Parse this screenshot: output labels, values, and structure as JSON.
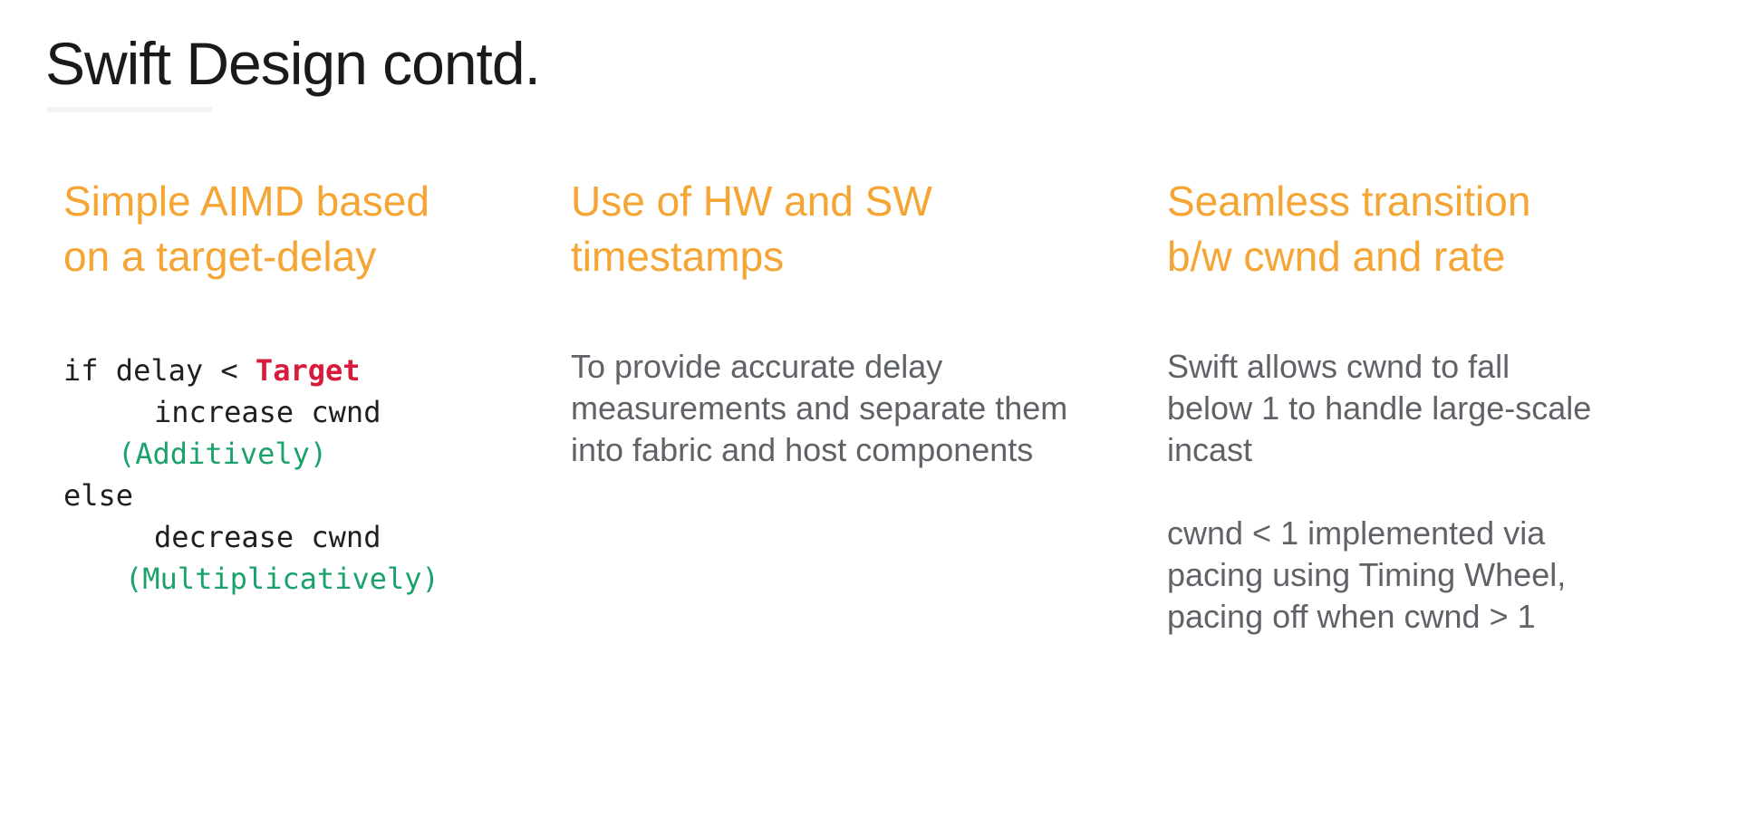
{
  "slide": {
    "title": "Swift Design contd."
  },
  "columns": [
    {
      "heading": "Simple AIMD based\non a target-delay",
      "code": {
        "line1_prefix": "if delay < ",
        "line1_target": "Target",
        "line2": "increase cwnd",
        "line3": "(Additively)",
        "line4": "else",
        "line5": "decrease cwnd",
        "line6": "(Multiplicatively)"
      }
    },
    {
      "heading": "Use of HW and SW\ntimestamps",
      "body": "To provide accurate delay\nmeasurements and separate them\ninto fabric and host components"
    },
    {
      "heading": "Seamless transition\nb/w cwnd and rate",
      "body1": "Swift allows cwnd to fall\nbelow 1 to handle large-scale\nincast",
      "body2": "cwnd < 1 implemented via\npacing using Timing Wheel,\npacing off when cwnd > 1"
    }
  ],
  "colors": {
    "heading": "#f5a533",
    "body": "#5f6368",
    "code_target": "#d81b3c",
    "code_comment": "#1aa26a"
  }
}
